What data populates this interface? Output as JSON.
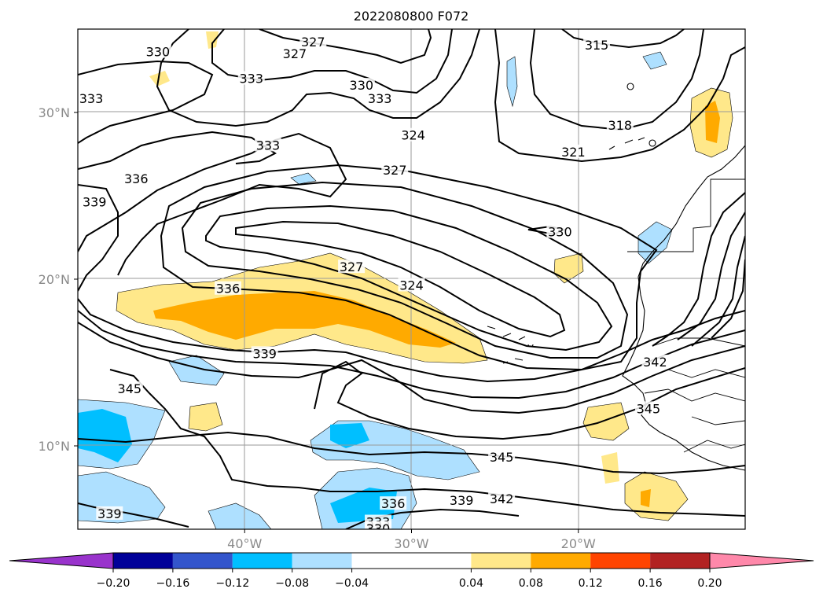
{
  "chart_data": {
    "type": "map",
    "title": "2022080800 F072",
    "map": {
      "lon_range": [
        -50,
        -10
      ],
      "lat_range": [
        5,
        35
      ],
      "x_ticks": [
        {
          "value": -40,
          "label": "40°W"
        },
        {
          "value": -30,
          "label": "30°W"
        },
        {
          "value": -20,
          "label": "20°W"
        }
      ],
      "y_ticks": [
        {
          "value": 30,
          "label": "30°N"
        },
        {
          "value": 20,
          "label": "20°N"
        },
        {
          "value": 10,
          "label": "10°N"
        }
      ],
      "grid": true
    },
    "contour_labels": [
      {
        "text": "330",
        "lon": -45.2,
        "lat": 33.6
      },
      {
        "text": "327",
        "lon": -35.9,
        "lat": 34.2
      },
      {
        "text": "327",
        "lon": -37.0,
        "lat": 33.5
      },
      {
        "text": "333",
        "lon": -39.6,
        "lat": 32.0
      },
      {
        "text": "330",
        "lon": -33.0,
        "lat": 31.6
      },
      {
        "text": "333",
        "lon": -31.9,
        "lat": 30.8
      },
      {
        "text": "333",
        "lon": -49.2,
        "lat": 30.8
      },
      {
        "text": "315",
        "lon": -18.9,
        "lat": 34.0
      },
      {
        "text": "318",
        "lon": -17.5,
        "lat": 29.2
      },
      {
        "text": "333",
        "lon": -38.6,
        "lat": 28.0
      },
      {
        "text": "324",
        "lon": -29.9,
        "lat": 28.6
      },
      {
        "text": "321",
        "lon": -20.3,
        "lat": 27.6
      },
      {
        "text": "327",
        "lon": -31.0,
        "lat": 26.5
      },
      {
        "text": "336",
        "lon": -46.5,
        "lat": 26.0
      },
      {
        "text": "339",
        "lon": -49.0,
        "lat": 24.6
      },
      {
        "text": "330",
        "lon": -21.1,
        "lat": 22.8
      },
      {
        "text": "327",
        "lon": -33.6,
        "lat": 20.7
      },
      {
        "text": "324",
        "lon": -30.0,
        "lat": 19.6
      },
      {
        "text": "336",
        "lon": -41.0,
        "lat": 19.4
      },
      {
        "text": "339",
        "lon": -38.8,
        "lat": 15.5
      },
      {
        "text": "342",
        "lon": -15.4,
        "lat": 15.0
      },
      {
        "text": "345",
        "lon": -46.9,
        "lat": 13.4
      },
      {
        "text": "345",
        "lon": -15.8,
        "lat": 12.2
      },
      {
        "text": "345",
        "lon": -24.6,
        "lat": 9.3
      },
      {
        "text": "342",
        "lon": -24.6,
        "lat": 6.8
      },
      {
        "text": "339",
        "lon": -27.0,
        "lat": 6.7
      },
      {
        "text": "336",
        "lon": -31.1,
        "lat": 6.5
      },
      {
        "text": "339",
        "lon": -48.1,
        "lat": 5.9
      },
      {
        "text": "333",
        "lon": -32.0,
        "lat": 5.4
      },
      {
        "text": "330",
        "lon": -32.0,
        "lat": 5.0
      }
    ],
    "colorbar": {
      "orientation": "horizontal",
      "extend": "both",
      "boundaries": [
        -0.24,
        -0.2,
        -0.16,
        -0.12,
        -0.08,
        -0.04,
        0.04,
        0.08,
        0.12,
        0.16,
        0.2,
        0.24
      ],
      "colors": [
        "#9933cc",
        "#000099",
        "#3355cc",
        "#00bfff",
        "#aee0ff",
        "#ffffff",
        "#ffe88a",
        "#ffaa00",
        "#ff4400",
        "#b22222",
        "#ff88aa"
      ],
      "ticks": [
        -0.2,
        -0.16,
        -0.12,
        -0.08,
        -0.04,
        0.04,
        0.08,
        0.12,
        0.16,
        0.2
      ],
      "tick_labels": [
        "−0.20",
        "−0.16",
        "−0.12",
        "−0.08",
        "−0.04",
        "0.04",
        "0.08",
        "0.12",
        "0.16",
        "0.20"
      ]
    }
  }
}
